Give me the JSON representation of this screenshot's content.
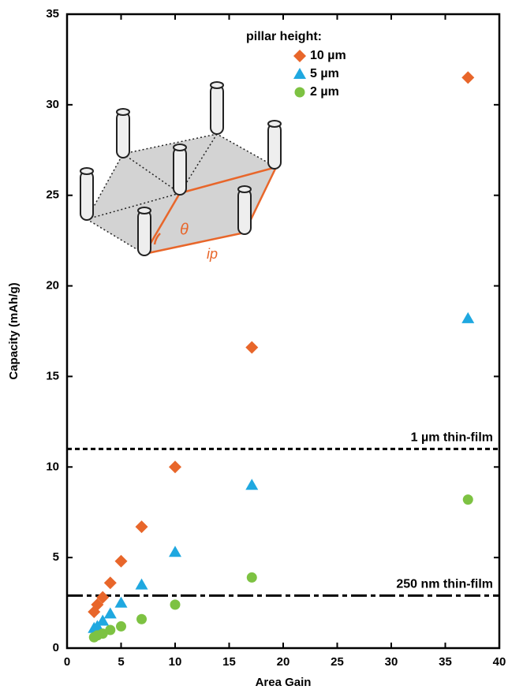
{
  "chart_data": {
    "type": "scatter",
    "x_label": "Area Gain",
    "y_label": "Capacity (mAh/g)",
    "xlim": [
      0,
      40
    ],
    "xticks": [
      0,
      5,
      10,
      15,
      20,
      25,
      30,
      35,
      40
    ],
    "ylim": [
      0,
      35
    ],
    "yticks": [
      0,
      5,
      10,
      15,
      20,
      25,
      30,
      35
    ],
    "legend_title": "pillar height:",
    "legend_position": "upper center",
    "series": [
      {
        "name": "10 µm",
        "color": "#e8662a",
        "marker": "diamond",
        "x": [
          2.5,
          2.8,
          3.3,
          4,
          5,
          6.9,
          10,
          17.1,
          37.1
        ],
        "values": [
          2.0,
          2.4,
          2.8,
          3.6,
          4.8,
          6.7,
          10.0,
          16.6,
          31.5
        ]
      },
      {
        "name": "5 µm",
        "color": "#1fa8e0",
        "marker": "triangle",
        "x": [
          2.5,
          2.8,
          3.3,
          4,
          5,
          6.9,
          10,
          17.1,
          37.1
        ],
        "values": [
          1.1,
          1.2,
          1.5,
          1.9,
          2.5,
          3.5,
          5.3,
          9.0,
          18.2
        ]
      },
      {
        "name": "2 µm",
        "color": "#7dc242",
        "marker": "circle",
        "x": [
          2.5,
          2.8,
          3.3,
          4,
          5,
          6.9,
          10,
          17.1,
          37.1
        ],
        "values": [
          0.6,
          0.7,
          0.8,
          1.0,
          1.2,
          1.6,
          2.4,
          3.9,
          8.2
        ]
      }
    ],
    "reference_lines": [
      {
        "label": "1 µm thin-film",
        "value": 11,
        "style": "dashed"
      },
      {
        "label": "250 nm thin-film",
        "value": 2.9,
        "style": "dashdot"
      }
    ],
    "annotations": [
      "θ",
      "ip"
    ]
  }
}
